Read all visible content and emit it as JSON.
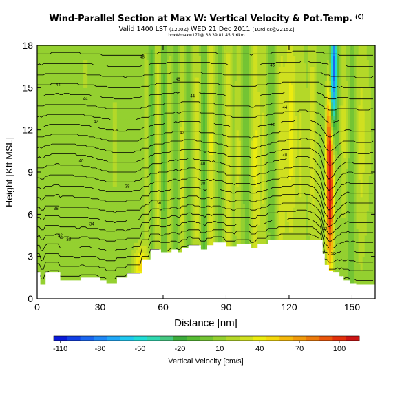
{
  "header": {
    "title": "Wind-Parallel Section at Max W: Vertical Velocity & Pot.Temp.",
    "title_mark": "(C)",
    "subtitle_prefix": "Valid 1400 LST ",
    "subtitle_small1": "(1200Z)",
    "subtitle_mid": " WED 21 Dec 2011 ",
    "subtitle_small2": "[10rd cs@2215Z]",
    "subtitle2": "hoxWmax=171@ 38.39,81 45,5,6km"
  },
  "chart_data": {
    "type": "heatmap",
    "title": "Wind-Parallel Section at Max W: Vertical Velocity & Pot.Temp.",
    "xlabel": "Distance [nm]",
    "ylabel": "Height [Kft MSL]",
    "xlim": [
      0,
      161
    ],
    "ylim": [
      0,
      18
    ],
    "x_ticks": [
      "0",
      "30",
      "60",
      "90",
      "120",
      "150"
    ],
    "x_tick_values": [
      0,
      30,
      60,
      90,
      120,
      150
    ],
    "y_ticks": [
      "0",
      "3",
      "6",
      "9",
      "12",
      "15",
      "18"
    ],
    "y_tick_values": [
      0,
      3,
      6,
      9,
      12,
      15,
      18
    ],
    "colorbar": {
      "label": "Vertical Velocity [cm/s]",
      "tick_labels": [
        "-110",
        "-80",
        "-50",
        "-20",
        "10",
        "40",
        "70",
        "100"
      ],
      "tick_values": [
        -110,
        -80,
        -50,
        -20,
        10,
        40,
        70,
        100
      ],
      "range": [
        -115,
        115
      ],
      "levels": 23,
      "colors": [
        "#0a1ad8",
        "#1240e6",
        "#1a66f0",
        "#1f88f6",
        "#20a8f8",
        "#1fc8f0",
        "#20dcd6",
        "#30d8b0",
        "#46c882",
        "#3cac3c",
        "#56bc34",
        "#74c434",
        "#94d030",
        "#b4d828",
        "#d0e020",
        "#ecec10",
        "#f4d80c",
        "#f4b80c",
        "#f09a0c",
        "#ec7a0c",
        "#ea560c",
        "#e2300c",
        "#cc1414"
      ]
    },
    "terrain": [
      [
        0,
        1.9
      ],
      [
        1.5,
        1.9
      ],
      [
        1.5,
        1
      ],
      [
        4,
        1
      ],
      [
        4,
        1.9
      ],
      [
        11,
        1.9
      ],
      [
        11,
        1.3
      ],
      [
        21,
        1.3
      ],
      [
        21,
        1.5
      ],
      [
        30,
        1.5
      ],
      [
        30,
        1.3
      ],
      [
        33,
        1.3
      ],
      [
        33,
        1.1
      ],
      [
        38,
        1.1
      ],
      [
        38,
        1.5
      ],
      [
        43,
        1.5
      ],
      [
        43,
        1.8
      ],
      [
        50,
        1.8
      ],
      [
        50,
        2.8
      ],
      [
        54,
        2.8
      ],
      [
        54,
        3.5
      ],
      [
        59,
        3.5
      ],
      [
        59,
        3.3
      ],
      [
        64,
        3.3
      ],
      [
        64,
        3.5
      ],
      [
        67,
        3.5
      ],
      [
        67,
        3.3
      ],
      [
        69,
        3.3
      ],
      [
        69,
        3.6
      ],
      [
        72,
        3.6
      ],
      [
        72,
        3.8
      ],
      [
        78,
        3.8
      ],
      [
        78,
        3.5
      ],
      [
        81,
        3.5
      ],
      [
        81,
        3.8
      ],
      [
        84,
        3.8
      ],
      [
        84,
        4.0
      ],
      [
        90,
        4.0
      ],
      [
        90,
        3.7
      ],
      [
        95,
        3.7
      ],
      [
        95,
        3.9
      ],
      [
        102,
        3.9
      ],
      [
        102,
        3.6
      ],
      [
        105,
        3.6
      ],
      [
        105,
        3.9
      ],
      [
        110,
        3.9
      ],
      [
        110,
        4.2
      ],
      [
        117,
        4.2
      ],
      [
        117,
        4.2
      ],
      [
        128,
        4.2
      ],
      [
        128,
        4.2
      ],
      [
        136,
        4.2
      ],
      [
        136,
        3.2
      ],
      [
        137,
        3.2
      ],
      [
        137,
        2.4
      ],
      [
        139,
        2.4
      ],
      [
        139,
        2.0
      ],
      [
        141,
        2.0
      ],
      [
        141,
        1.9
      ],
      [
        144,
        1.9
      ],
      [
        144,
        1.6
      ],
      [
        146,
        1.6
      ],
      [
        146,
        1.3
      ],
      [
        149,
        1.3
      ],
      [
        149,
        1.1
      ],
      [
        152,
        1.1
      ],
      [
        152,
        1.0
      ],
      [
        161,
        1.0
      ]
    ],
    "w_field": {
      "background": 5,
      "features": [
        {
          "x": 14,
          "h": 0.0,
          "xw": 5,
          "hw": 1.2,
          "w": 14
        },
        {
          "x": 23,
          "h": 16.0,
          "xw": 1.4,
          "hw": 2.0,
          "w": 12
        },
        {
          "x": 29,
          "h": 13.0,
          "xw": 1.0,
          "hw": 3.5,
          "w": 8
        },
        {
          "x": 37,
          "h": 11.0,
          "xw": 1.5,
          "hw": 4.0,
          "w": 14
        },
        {
          "x": 46,
          "h": 10.0,
          "xw": 1.2,
          "hw": 4.0,
          "w": 10
        },
        {
          "x": 49,
          "h": 2.4,
          "xw": 2.2,
          "hw": 1.0,
          "w": 45
        },
        {
          "x": 52,
          "h": 10.0,
          "xw": 1.0,
          "hw": 7.0,
          "w": 20
        },
        {
          "x": 54.5,
          "h": 12.5,
          "xw": 0.8,
          "hw": 5.5,
          "w": -18
        },
        {
          "x": 57.5,
          "h": 11.0,
          "xw": 1.2,
          "hw": 8.0,
          "w": 26
        },
        {
          "x": 60.5,
          "h": 11.0,
          "xw": 0.9,
          "hw": 8.0,
          "w": -14
        },
        {
          "x": 63,
          "h": 10.0,
          "xw": 1.0,
          "hw": 8.0,
          "w": 18
        },
        {
          "x": 66,
          "h": 11.0,
          "xw": 1.0,
          "hw": 8.0,
          "w": -12
        },
        {
          "x": 69,
          "h": 9.0,
          "xw": 1.2,
          "hw": 9.0,
          "w": 24
        },
        {
          "x": 72,
          "h": 13.0,
          "xw": 0.9,
          "hw": 7.0,
          "w": -10
        },
        {
          "x": 76,
          "h": 10.0,
          "xw": 1.5,
          "hw": 9.0,
          "w": 26
        },
        {
          "x": 79.5,
          "h": 9.5,
          "xw": 1.0,
          "hw": 9.0,
          "w": -16
        },
        {
          "x": 83,
          "h": 11.0,
          "xw": 1.5,
          "hw": 9.0,
          "w": 32
        },
        {
          "x": 87,
          "h": 10.0,
          "xw": 1.2,
          "hw": 9.0,
          "w": -10
        },
        {
          "x": 91,
          "h": 10.0,
          "xw": 1.5,
          "hw": 9.0,
          "w": 30
        },
        {
          "x": 96,
          "h": 10.0,
          "xw": 1.2,
          "hw": 9.0,
          "w": 22
        },
        {
          "x": 100,
          "h": 12.0,
          "xw": 1.0,
          "hw": 7.0,
          "w": -10
        },
        {
          "x": 104,
          "h": 10.0,
          "xw": 1.6,
          "hw": 9.0,
          "w": 32
        },
        {
          "x": 108,
          "h": 10.0,
          "xw": 1.2,
          "hw": 9.0,
          "w": 20
        },
        {
          "x": 112,
          "h": 12.0,
          "xw": 1.2,
          "hw": 7.0,
          "w": -8
        },
        {
          "x": 116,
          "h": 10.0,
          "xw": 1.8,
          "hw": 9.0,
          "w": 26
        },
        {
          "x": 121,
          "h": 12.0,
          "xw": 2.0,
          "hw": 7.0,
          "w": 34
        },
        {
          "x": 126,
          "h": 10.0,
          "xw": 1.5,
          "hw": 8.0,
          "w": 20
        },
        {
          "x": 131,
          "h": 12.0,
          "xw": 1.5,
          "hw": 7.0,
          "w": 26
        },
        {
          "x": 134,
          "h": 5.0,
          "xw": 1.2,
          "hw": 4.0,
          "w": 16
        },
        {
          "x": 139.5,
          "h": 7.5,
          "xw": 1.3,
          "hw": 4.0,
          "w": 108
        },
        {
          "x": 139,
          "h": 12.5,
          "xw": 1.0,
          "hw": 2.5,
          "w": 36
        },
        {
          "x": 141.5,
          "h": 16.5,
          "xw": 1.0,
          "hw": 2.5,
          "w": -95
        },
        {
          "x": 140.5,
          "h": 13.5,
          "xw": 0.8,
          "hw": 1.5,
          "w": -40
        },
        {
          "x": 143.5,
          "h": 11.0,
          "xw": 1.2,
          "hw": 3.5,
          "w": -6
        },
        {
          "x": 146,
          "h": 12.0,
          "xw": 1.5,
          "hw": 5.0,
          "w": 24
        },
        {
          "x": 150,
          "h": 10.0,
          "xw": 1.5,
          "hw": 6.0,
          "w": -10
        },
        {
          "x": 154,
          "h": 11.0,
          "xw": 2.0,
          "hw": 7.0,
          "w": 22
        },
        {
          "x": 158,
          "h": 12.0,
          "xw": 2.0,
          "hw": 6.0,
          "w": 10
        }
      ]
    },
    "theta_contours": {
      "spacing_kft": 0.75,
      "labels": [
        {
          "text": "48",
          "x": 50,
          "h": 17.2
        },
        {
          "text": "46",
          "x": 67,
          "h": 15.6
        },
        {
          "text": "46",
          "x": 112,
          "h": 16.6
        },
        {
          "text": "44",
          "x": 10,
          "h": 15.2
        },
        {
          "text": "44",
          "x": 23,
          "h": 14.2
        },
        {
          "text": "44",
          "x": 74,
          "h": 14.4
        },
        {
          "text": "44",
          "x": 118,
          "h": 13.6
        },
        {
          "text": "42",
          "x": 28,
          "h": 12.6
        },
        {
          "text": "42",
          "x": 69,
          "h": 11.8
        },
        {
          "text": "42",
          "x": 112,
          "h": 12.4
        },
        {
          "text": "40",
          "x": 21,
          "h": 9.8
        },
        {
          "text": "40",
          "x": 79,
          "h": 9.6
        },
        {
          "text": "40",
          "x": 118,
          "h": 10.2
        },
        {
          "text": "38",
          "x": 43,
          "h": 8.0
        },
        {
          "text": "38",
          "x": 79,
          "h": 8.2
        },
        {
          "text": "36",
          "x": 58,
          "h": 6.8
        },
        {
          "text": "36",
          "x": 9,
          "h": 6.4
        },
        {
          "text": "34",
          "x": 26,
          "h": 5.3
        },
        {
          "text": "32",
          "x": 11,
          "h": 4.5
        },
        {
          "text": "30",
          "x": 15,
          "h": 4.2
        },
        {
          "text": "32",
          "x": 137,
          "h": 5.0
        },
        {
          "text": "30",
          "x": 141,
          "h": 3.2
        }
      ]
    }
  }
}
